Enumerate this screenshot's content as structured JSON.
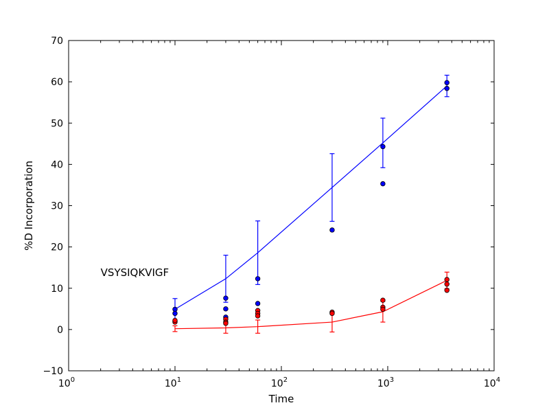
{
  "chart_data": {
    "type": "scatter",
    "xlabel": "Time",
    "ylabel": "%D Incorporation",
    "xscale": "log",
    "xlim": [
      1,
      10000
    ],
    "ylim": [
      -10,
      70
    ],
    "x_ticks": [
      {
        "value": 1,
        "base": "10",
        "exp": "0"
      },
      {
        "value": 10,
        "base": "10",
        "exp": "1"
      },
      {
        "value": 100,
        "base": "10",
        "exp": "2"
      },
      {
        "value": 1000,
        "base": "10",
        "exp": "3"
      },
      {
        "value": 10000,
        "base": "10",
        "exp": "4"
      }
    ],
    "y_ticks": [
      {
        "value": -10,
        "label": "−10"
      },
      {
        "value": 0,
        "label": "0"
      },
      {
        "value": 10,
        "label": "10"
      },
      {
        "value": 20,
        "label": "20"
      },
      {
        "value": 30,
        "label": "30"
      },
      {
        "value": 40,
        "label": "40"
      },
      {
        "value": 50,
        "label": "50"
      },
      {
        "value": 60,
        "label": "60"
      },
      {
        "value": 70,
        "label": "70"
      }
    ],
    "grid": false,
    "annotation": {
      "text": "VSYSIQKVIGF",
      "x": 2,
      "y": 13.8
    },
    "series": [
      {
        "color": "#0000ff",
        "line": [
          {
            "x": 10,
            "y": 4.9,
            "err": 2.6
          },
          {
            "x": 30,
            "y": 12.3,
            "err": 5.7
          },
          {
            "x": 60,
            "y": 18.6,
            "err": 7.7
          },
          {
            "x": 300,
            "y": 34.4,
            "err": 8.2
          },
          {
            "x": 900,
            "y": 45.2,
            "err": 6.0
          },
          {
            "x": 3600,
            "y": 59.0,
            "err": 2.6
          }
        ],
        "points": [
          {
            "x": 10,
            "y": 4.9
          },
          {
            "x": 10,
            "y": 3.9
          },
          {
            "x": 10,
            "y": 2.0
          },
          {
            "x": 30,
            "y": 7.6
          },
          {
            "x": 30,
            "y": 5.0
          },
          {
            "x": 30,
            "y": 3.0
          },
          {
            "x": 60,
            "y": 12.3
          },
          {
            "x": 60,
            "y": 6.3
          },
          {
            "x": 300,
            "y": 24.1
          },
          {
            "x": 900,
            "y": 44.3
          },
          {
            "x": 900,
            "y": 35.3
          },
          {
            "x": 3600,
            "y": 59.8
          },
          {
            "x": 3600,
            "y": 58.4
          }
        ]
      },
      {
        "color": "#ff0000",
        "line": [
          {
            "x": 10,
            "y": 0.2,
            "err": 0.7
          },
          {
            "x": 30,
            "y": 0.4,
            "err": 1.3
          },
          {
            "x": 60,
            "y": 0.7,
            "err": 1.6
          },
          {
            "x": 300,
            "y": 1.8,
            "err": 2.4
          },
          {
            "x": 900,
            "y": 4.3,
            "err": 2.5
          },
          {
            "x": 3600,
            "y": 11.9,
            "err": 2.0
          }
        ],
        "points": [
          {
            "x": 10,
            "y": 1.8
          },
          {
            "x": 10,
            "y": 2.2
          },
          {
            "x": 30,
            "y": 2.5
          },
          {
            "x": 30,
            "y": 1.8
          },
          {
            "x": 30,
            "y": 1.5
          },
          {
            "x": 60,
            "y": 4.6
          },
          {
            "x": 60,
            "y": 3.9
          },
          {
            "x": 60,
            "y": 3.3
          },
          {
            "x": 300,
            "y": 4.2
          },
          {
            "x": 300,
            "y": 3.9
          },
          {
            "x": 900,
            "y": 7.1
          },
          {
            "x": 900,
            "y": 5.4
          },
          {
            "x": 900,
            "y": 4.9
          },
          {
            "x": 3600,
            "y": 12.1
          },
          {
            "x": 3600,
            "y": 11.0
          },
          {
            "x": 3600,
            "y": 9.5
          }
        ]
      }
    ]
  }
}
